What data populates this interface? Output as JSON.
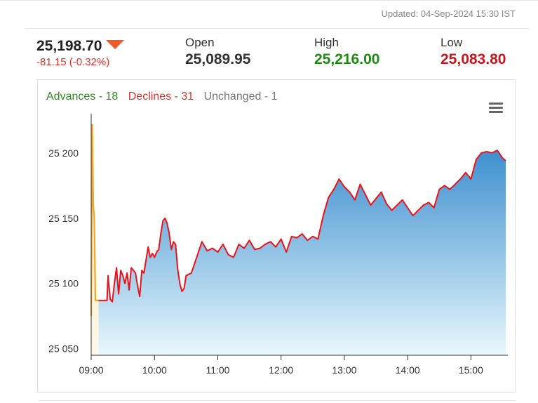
{
  "updated": "Updated: 04-Sep-2024 15:30 IST",
  "quote": {
    "price": "25,198.70",
    "change": "-81.15 (-0.32%)",
    "open_label": "Open",
    "open_value": "25,089.95",
    "high_label": "High",
    "high_value": "25,216.00",
    "low_label": "Low",
    "low_value": "25,083.80"
  },
  "breadth": {
    "advances": "Advances - 18",
    "declines": "Declines - 31",
    "unchanged": "Unchanged - 1"
  },
  "colors": {
    "advances": "#2e8b1e",
    "declines": "#e0312b",
    "unchanged": "#777777",
    "high": "#1f8a12",
    "low": "#c8161d",
    "line": "#e8141c",
    "pre_open_line": "#f5a623",
    "fill_top": "#3e8fcf",
    "fill_bottom": "#e8f8fc"
  },
  "chart_data": {
    "type": "area",
    "title": "",
    "xlabel": "",
    "ylabel": "",
    "x_ticks": [
      "09:00",
      "10:00",
      "11:00",
      "12:00",
      "13:00",
      "14:00",
      "15:00"
    ],
    "y_ticks": [
      "25 050",
      "25 100",
      "25 150",
      "25 200"
    ],
    "ylim": [
      25045,
      25230
    ],
    "grid": false,
    "series": [
      {
        "x": [
          "09:00",
          "09:01",
          "09:02",
          "09:03",
          "09:04",
          "09:05",
          "09:06",
          "09:07"
        ],
        "y": [
          25075,
          25222,
          25160,
          25150,
          25087,
          25087,
          25087,
          25087
        ]
      },
      {
        "x": [
          "09:07",
          "09:15",
          "09:16",
          "09:18",
          "09:20",
          "09:22",
          "09:24",
          "09:26",
          "09:28",
          "09:30",
          "09:32",
          "09:34",
          "09:36",
          "09:38",
          "09:40",
          "09:42",
          "09:44",
          "09:46",
          "09:48",
          "09:50",
          "09:52",
          "09:54",
          "09:56",
          "09:58",
          "10:00",
          "10:02",
          "10:04",
          "10:06",
          "10:08",
          "10:10",
          "10:12",
          "10:14",
          "10:16",
          "10:18",
          "10:20",
          "10:22",
          "10:24",
          "10:26",
          "10:28",
          "10:30",
          "10:35",
          "10:40",
          "10:45",
          "10:50",
          "10:55",
          "11:00",
          "11:05",
          "11:10",
          "11:15",
          "11:20",
          "11:25",
          "11:30",
          "11:35",
          "11:40",
          "11:45",
          "11:50",
          "11:55",
          "12:00",
          "12:05",
          "12:10",
          "12:15",
          "12:20",
          "12:25",
          "12:30",
          "12:35",
          "12:40",
          "12:45",
          "12:50",
          "12:55",
          "13:00",
          "13:05",
          "13:10",
          "13:15",
          "13:20",
          "13:25",
          "13:30",
          "13:35",
          "13:40",
          "13:45",
          "13:50",
          "13:55",
          "14:00",
          "14:05",
          "14:10",
          "14:15",
          "14:20",
          "14:25",
          "14:30",
          "14:35",
          "14:40",
          "14:45",
          "14:50",
          "14:55",
          "15:00",
          "15:05",
          "15:10",
          "15:15",
          "15:20",
          "15:25",
          "15:30",
          "15:33"
        ],
        "y": [
          25087,
          25087,
          25106,
          25088,
          25086,
          25100,
          25112,
          25092,
          25110,
          25106,
          25100,
          25108,
          25095,
          25112,
          25110,
          25108,
          25098,
          25090,
          25110,
          25108,
          25118,
          25128,
          25120,
          25123,
          25120,
          25124,
          25126,
          25138,
          25148,
          25150,
          25146,
          25138,
          25126,
          25132,
          25130,
          25111,
          25100,
          25094,
          25096,
          25106,
          25108,
          25120,
          25132,
          25125,
          25127,
          25124,
          25130,
          25122,
          25120,
          25130,
          25127,
          25133,
          25126,
          25127,
          25130,
          25132,
          25128,
          25134,
          25124,
          25136,
          25135,
          25138,
          25133,
          25136,
          25134,
          25152,
          25166,
          25172,
          25180,
          25174,
          25170,
          25164,
          25176,
          25168,
          25160,
          25165,
          25170,
          25161,
          25156,
          25160,
          25164,
          25158,
          25152,
          25156,
          25160,
          25162,
          25158,
          25172,
          25175,
          25172,
          25176,
          25180,
          25185,
          25180,
          25195,
          25200,
          25201,
          25200,
          25202,
          25196,
          25194
        ]
      }
    ]
  }
}
